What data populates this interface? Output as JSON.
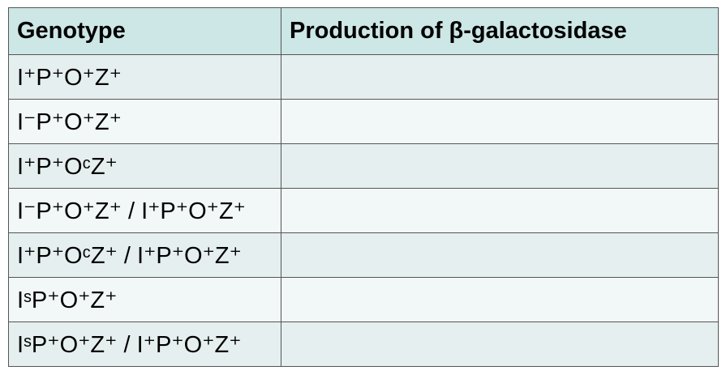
{
  "table": {
    "header": [
      "Genotype",
      "Production of β-galactosidase"
    ],
    "rows": [
      "I⁺P⁺O⁺Z⁺",
      "I⁻P⁺O⁺Z⁺",
      "I⁺P⁺OᶜZ⁺",
      "I⁻P⁺O⁺Z⁺ / I⁺P⁺O⁺Z⁺",
      "I⁺P⁺OᶜZ⁺ / I⁺P⁺O⁺Z⁺",
      "IˢP⁺O⁺Z⁺",
      "IˢP⁺O⁺Z⁺ / I⁺P⁺O⁺Z⁺"
    ]
  }
}
